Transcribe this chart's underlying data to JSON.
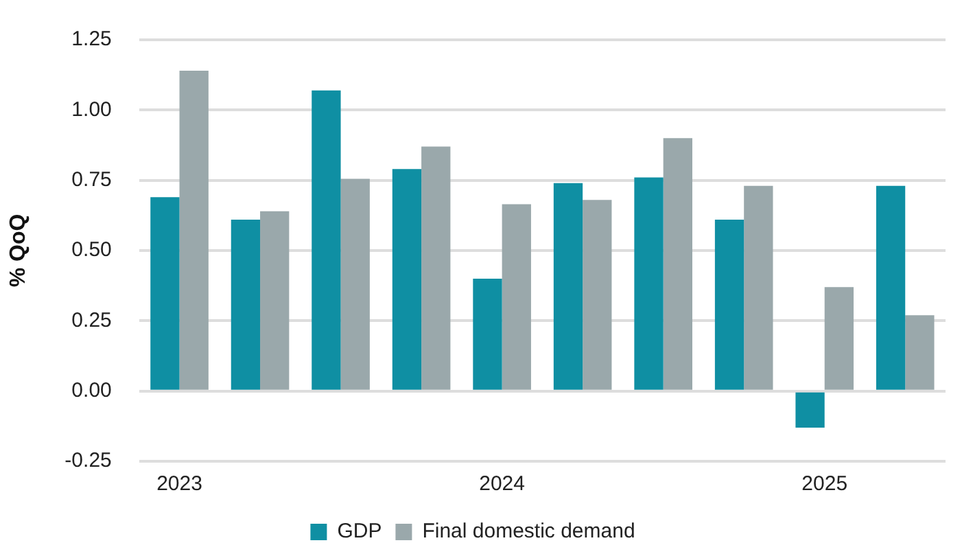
{
  "chart_data": {
    "type": "bar",
    "ylabel": "% QoQ",
    "categories": [
      "2023",
      null,
      null,
      null,
      "2024",
      null,
      null,
      null,
      "2025",
      null
    ],
    "series": [
      {
        "name": "GDP",
        "color": "#0f8fa3",
        "values": [
          0.69,
          0.61,
          1.07,
          0.79,
          0.4,
          0.74,
          0.76,
          0.61,
          -0.13,
          0.73
        ]
      },
      {
        "name": "Final domestic demand",
        "color": "#9aa8ab",
        "values": [
          1.14,
          0.64,
          0.755,
          0.87,
          0.665,
          0.68,
          0.9,
          0.73,
          0.37,
          0.27
        ]
      }
    ],
    "ylim": [
      -0.25,
      1.25
    ],
    "yticks": [
      {
        "value": -0.25,
        "label": "-0.25"
      },
      {
        "value": 0,
        "label": "0.00"
      },
      {
        "value": 0.25,
        "label": "0.25"
      },
      {
        "value": 0.5,
        "label": "0.50"
      },
      {
        "value": 0.75,
        "label": "0.75"
      },
      {
        "value": 1,
        "label": "1.00"
      },
      {
        "value": 1.25,
        "label": "1.25"
      }
    ],
    "grid": "y",
    "legend": "bottom"
  }
}
